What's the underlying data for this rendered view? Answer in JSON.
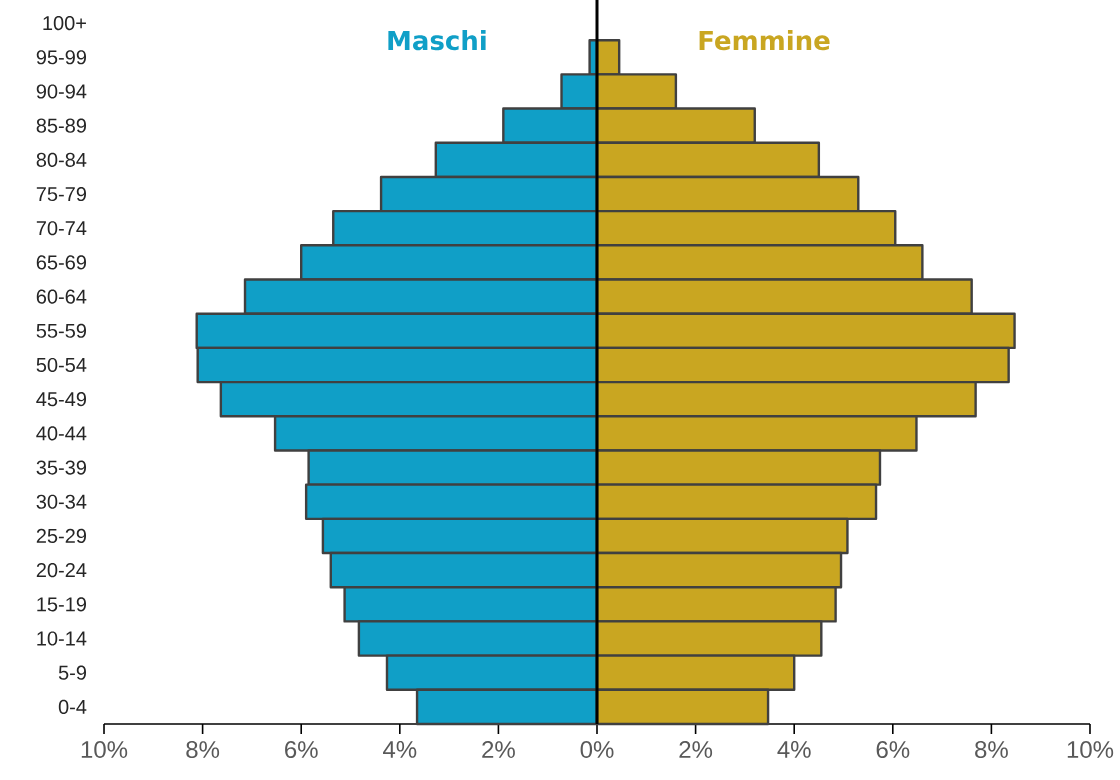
{
  "chart_data": {
    "type": "bar",
    "orientation": "horizontal",
    "stacked": true,
    "categories": [
      "100+",
      "95-99",
      "90-94",
      "85-89",
      "80-84",
      "75-79",
      "70-74",
      "65-69",
      "60-64",
      "55-59",
      "50-54",
      "45-49",
      "40-44",
      "35-39",
      "30-34",
      "25-29",
      "20-24",
      "15-19",
      "10-14",
      "5-9",
      "0-4"
    ],
    "series": [
      {
        "name": "Maschi",
        "color": "#109fc7",
        "values": [
          null,
          -0.15,
          -0.72,
          -1.9,
          -3.27,
          -4.38,
          -5.35,
          -6.0,
          -7.14,
          -8.12,
          -8.1,
          -7.63,
          -6.53,
          -5.85,
          -5.9,
          -5.56,
          -5.4,
          -5.12,
          -4.83,
          -4.26,
          -3.65
        ]
      },
      {
        "name": "Femmine",
        "color": "#c9a621",
        "values": [
          null,
          0.45,
          1.6,
          3.2,
          4.5,
          5.3,
          6.05,
          6.6,
          7.6,
          8.47,
          8.35,
          7.68,
          6.48,
          5.74,
          5.66,
          5.08,
          4.95,
          4.84,
          4.55,
          4.0,
          3.47
        ]
      }
    ],
    "xlim": [
      -10,
      10
    ],
    "xticks": [
      {
        "value": -10,
        "label": "10%"
      },
      {
        "value": -8,
        "label": "8%"
      },
      {
        "value": -6,
        "label": "6%"
      },
      {
        "value": -4,
        "label": "4%"
      },
      {
        "value": -2,
        "label": "2%"
      },
      {
        "value": 0,
        "label": "0%"
      },
      {
        "value": 2,
        "label": "2%"
      },
      {
        "value": 4,
        "label": "4%"
      },
      {
        "value": 6,
        "label": "6%"
      },
      {
        "value": 8,
        "label": "8%"
      },
      {
        "value": 10,
        "label": "10%"
      }
    ]
  }
}
